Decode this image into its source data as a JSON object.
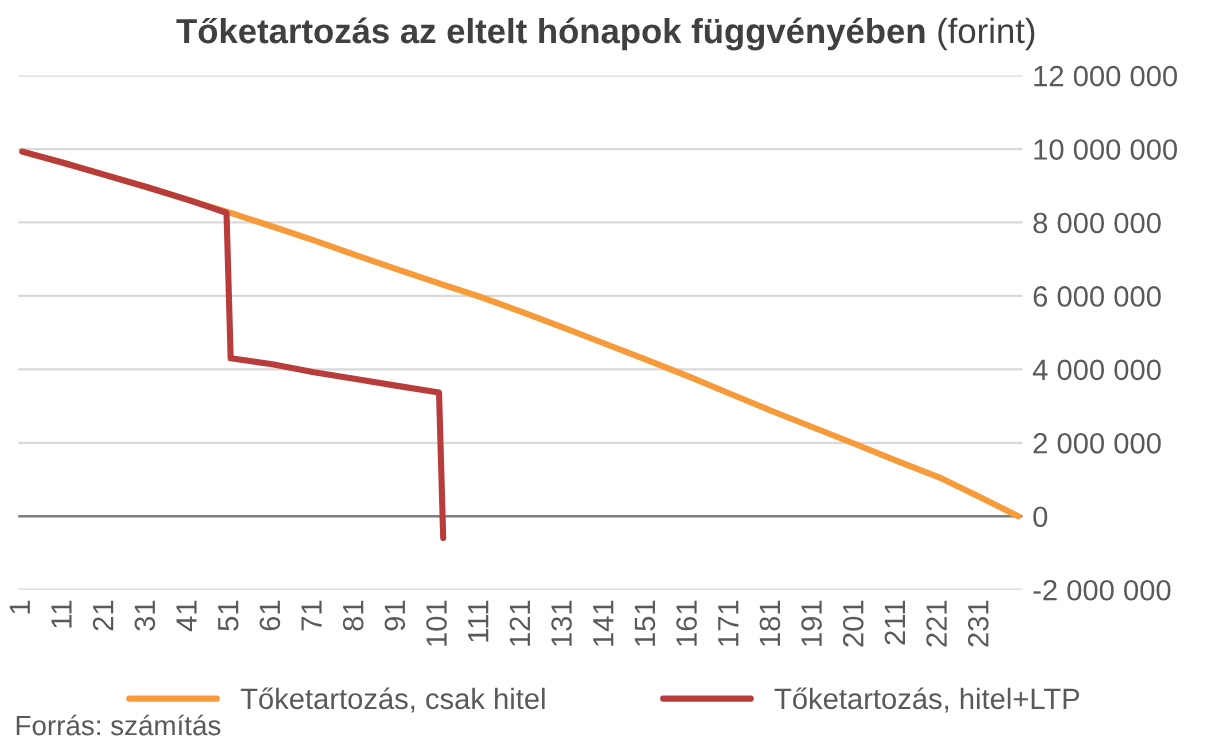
{
  "chart_data": {
    "type": "line",
    "title": "Tőketartozás az eltelt hónapok függvényében",
    "subtitle": "(forint)",
    "annotations": [
      "Forrás: számítás"
    ],
    "series": [
      {
        "name": "Tőketartozás, csak hitel",
        "color": "#f79a3a",
        "x": [
          1,
          11,
          21,
          31,
          41,
          51,
          61,
          71,
          81,
          91,
          101,
          111,
          121,
          131,
          141,
          151,
          161,
          171,
          181,
          191,
          201,
          211,
          221,
          231,
          240
        ],
        "values": [
          9930000,
          9620000,
          9290000,
          8960000,
          8610000,
          8260000,
          7890000,
          7510000,
          7110000,
          6720000,
          6340000,
          5970000,
          5560000,
          5130000,
          4690000,
          4250000,
          3800000,
          3330000,
          2860000,
          2410000,
          1960000,
          1500000,
          1060000,
          510000,
          0
        ]
      },
      {
        "name": "Tőketartozás, hitel+LTP",
        "color": "#b83c3c",
        "x": [
          1,
          11,
          21,
          31,
          41,
          50,
          51,
          61,
          71,
          81,
          91,
          101,
          102
        ],
        "values": [
          9930000,
          9620000,
          9290000,
          8960000,
          8610000,
          8260000,
          4300000,
          4140000,
          3920000,
          3740000,
          3550000,
          3370000,
          -590000
        ]
      }
    ],
    "xlim": [
      0,
      241
    ],
    "xticks": [
      1,
      11,
      21,
      31,
      41,
      51,
      61,
      71,
      81,
      91,
      101,
      111,
      121,
      131,
      141,
      151,
      161,
      171,
      181,
      191,
      201,
      211,
      221,
      231
    ],
    "ylim": [
      -2000000,
      12000000
    ],
    "yticks": [
      {
        "value": -2000000,
        "label": "-2 000 000"
      },
      {
        "value": 0,
        "label": "0"
      },
      {
        "value": 2000000,
        "label": "2 000 000"
      },
      {
        "value": 4000000,
        "label": "4 000 000"
      },
      {
        "value": 6000000,
        "label": "6 000 000"
      },
      {
        "value": 8000000,
        "label": "8 000 000"
      },
      {
        "value": 10000000,
        "label": "10 000 000"
      },
      {
        "value": 12000000,
        "label": "12 000 000"
      }
    ],
    "ref_lines": [
      {
        "axis": "y",
        "value": 0,
        "color": "#7f7f7f"
      }
    ],
    "grid": "y",
    "legend": "bottom",
    "marker": "none",
    "line_style": "solid"
  }
}
